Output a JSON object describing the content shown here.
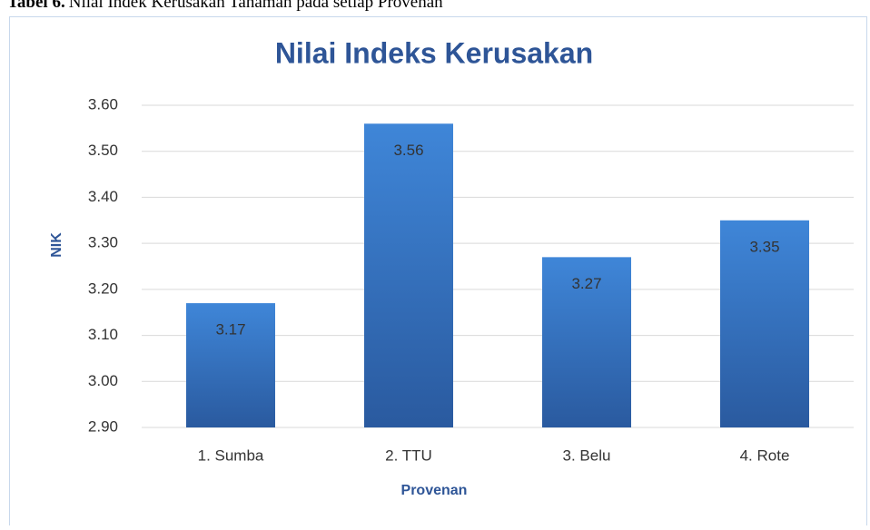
{
  "caption": {
    "label": "Tabel 6.",
    "text": "Nilai Indek Kerusakan Tanaman pada setiap Provenan"
  },
  "chart_data": {
    "type": "bar",
    "title": "Nilai Indeks Kerusakan",
    "x_label": "Provenan",
    "y_label": "NIK",
    "categories": [
      "1. Sumba",
      "2. TTU",
      "3. Belu",
      "4. Rote"
    ],
    "values": [
      3.17,
      3.56,
      3.27,
      3.35
    ],
    "color": "#3a78c8",
    "ylim": [
      2.9,
      3.6
    ],
    "yticks": [
      {
        "value": 2.9,
        "label": "2.90"
      },
      {
        "value": 3.0,
        "label": "3.00"
      },
      {
        "value": 3.1,
        "label": "3.10"
      },
      {
        "value": 3.2,
        "label": "3.20"
      },
      {
        "value": 3.3,
        "label": "3.30"
      },
      {
        "value": 3.4,
        "label": "3.40"
      },
      {
        "value": 3.5,
        "label": "3.50"
      },
      {
        "value": 3.6,
        "label": "3.60"
      }
    ],
    "grid": true
  }
}
